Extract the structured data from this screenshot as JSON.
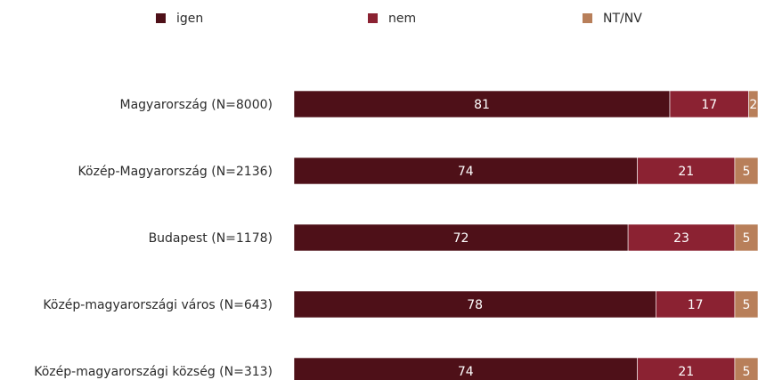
{
  "chart_data": {
    "type": "bar",
    "orientation": "horizontal",
    "stacked": true,
    "legend_position": "top",
    "categories": [
      "Magyarország (N=8000)",
      "Közép-Magyarország (N=2136)",
      "Budapest (N=1178)",
      "Közép-magyarországi város (N=643)",
      "Közép-magyarországi község (N=313)"
    ],
    "series": [
      {
        "name": "igen",
        "color": "#4e1018",
        "values": [
          81,
          74,
          72,
          78,
          74
        ]
      },
      {
        "name": "nem",
        "color": "#8b2232",
        "values": [
          17,
          21,
          23,
          17,
          21
        ]
      },
      {
        "name": "NT/NV",
        "color": "#b87f5a",
        "values": [
          2,
          5,
          5,
          5,
          5
        ]
      }
    ],
    "xlim": [
      0,
      100
    ],
    "grid": false
  }
}
